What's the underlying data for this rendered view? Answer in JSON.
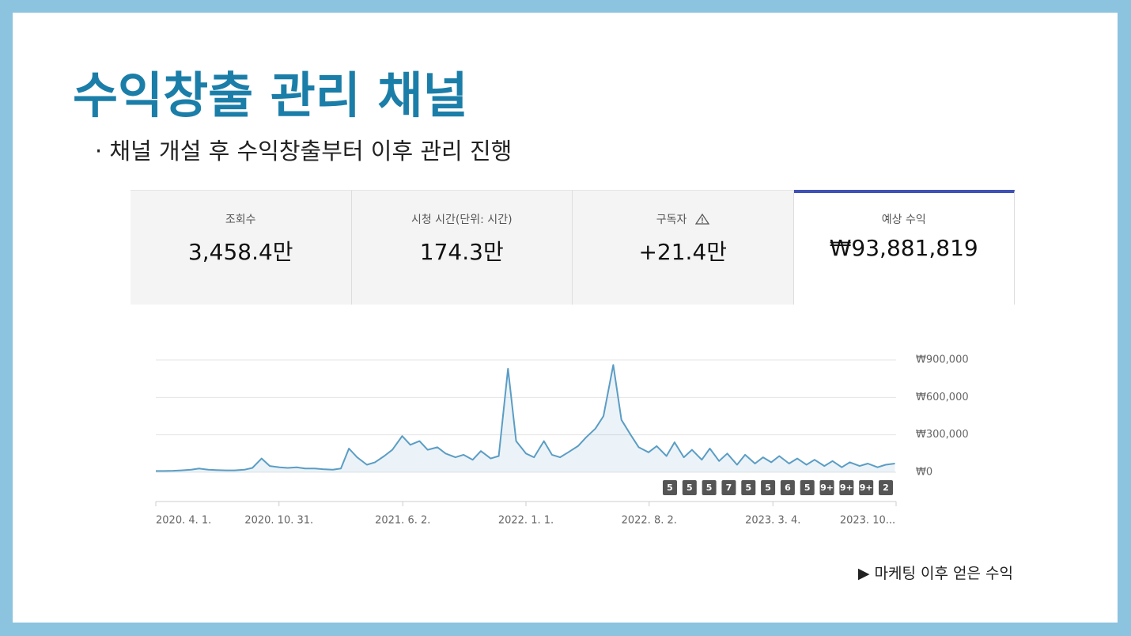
{
  "header": {
    "title": "수익창출 관리 채널",
    "subtitle": "· 채널 개설 후 수익창출부터 이후 관리 진행"
  },
  "cards": [
    {
      "label": "조회수",
      "value": "3,458.4만"
    },
    {
      "label": "시청 시간(단위: 시간)",
      "value": "174.3만"
    },
    {
      "label": "구독자",
      "value": "+21.4만"
    },
    {
      "label": "예상 수익",
      "value": "₩93,881,819"
    }
  ],
  "chart_data": {
    "type": "area",
    "color": "#5b9dc4",
    "x": [
      "2020-04-01",
      "2020-04-15",
      "2020-05-01",
      "2020-05-15",
      "2020-06-01",
      "2020-06-15",
      "2020-07-01",
      "2020-07-15",
      "2020-08-01",
      "2020-08-15",
      "2020-09-01",
      "2020-09-15",
      "2020-10-01",
      "2020-10-15",
      "2020-11-01",
      "2020-11-15",
      "2020-12-01",
      "2020-12-15",
      "2021-01-01",
      "2021-01-15",
      "2021-02-01",
      "2021-02-15",
      "2021-03-01",
      "2021-03-15",
      "2021-04-01",
      "2021-04-15",
      "2021-05-01",
      "2021-05-15",
      "2021-06-01",
      "2021-06-15",
      "2021-07-01",
      "2021-07-15",
      "2021-08-01",
      "2021-08-15",
      "2021-09-01",
      "2021-09-15",
      "2021-10-01",
      "2021-10-15",
      "2021-11-01",
      "2021-11-15",
      "2021-12-01",
      "2021-12-15",
      "2022-01-01",
      "2022-01-15",
      "2022-02-01",
      "2022-02-15",
      "2022-03-01",
      "2022-03-15",
      "2022-04-01",
      "2022-04-15",
      "2022-05-01",
      "2022-05-15",
      "2022-06-01",
      "2022-06-15",
      "2022-07-01",
      "2022-07-15",
      "2022-08-01",
      "2022-08-15",
      "2022-09-01",
      "2022-09-15",
      "2022-10-01",
      "2022-10-15",
      "2022-11-01",
      "2022-11-15",
      "2022-12-01",
      "2022-12-15",
      "2023-01-01",
      "2023-01-15",
      "2023-02-01",
      "2023-02-15",
      "2023-03-01",
      "2023-03-15",
      "2023-04-01",
      "2023-04-15",
      "2023-05-01",
      "2023-05-15",
      "2023-06-01",
      "2023-06-15",
      "2023-07-01",
      "2023-07-15",
      "2023-08-01",
      "2023-08-15",
      "2023-09-01",
      "2023-09-15",
      "2023-10-01"
    ],
    "values": [
      10000,
      10000,
      12000,
      15000,
      20000,
      30000,
      20000,
      18000,
      15000,
      15000,
      20000,
      35000,
      110000,
      50000,
      40000,
      35000,
      40000,
      30000,
      30000,
      25000,
      20000,
      30000,
      190000,
      120000,
      60000,
      80000,
      130000,
      180000,
      290000,
      220000,
      250000,
      180000,
      200000,
      150000,
      120000,
      140000,
      100000,
      170000,
      110000,
      130000,
      830000,
      250000,
      150000,
      120000,
      250000,
      140000,
      120000,
      160000,
      210000,
      280000,
      350000,
      450000,
      860000,
      420000,
      300000,
      200000,
      160000,
      210000,
      130000,
      240000,
      120000,
      180000,
      100000,
      190000,
      90000,
      150000,
      60000,
      140000,
      70000,
      120000,
      80000,
      130000,
      70000,
      110000,
      60000,
      100000,
      50000,
      90000,
      40000,
      80000,
      50000,
      70000,
      40000,
      60000,
      70000
    ],
    "xlim": [
      "2020-04-01",
      "2023-10-03"
    ],
    "xticks": [
      {
        "value": "2020-04-01",
        "label": "2020. 4. 1."
      },
      {
        "value": "2020-10-31",
        "label": "2020. 10. 31."
      },
      {
        "value": "2021-06-02",
        "label": "2021. 6. 2."
      },
      {
        "value": "2022-01-01",
        "label": "2022. 1. 1."
      },
      {
        "value": "2022-08-02",
        "label": "2022. 8. 2."
      },
      {
        "value": "2023-03-04",
        "label": "2023. 3. 4."
      },
      {
        "value": "2023-10-03",
        "label": "2023. 10..."
      }
    ],
    "ylim": [
      0,
      900000
    ],
    "yticks": [
      {
        "value": 0,
        "label": "₩0"
      },
      {
        "value": 300000,
        "label": "₩300,000"
      },
      {
        "value": 600000,
        "label": "₩600,000"
      },
      {
        "value": 900000,
        "label": "₩900,000"
      }
    ],
    "grid": true,
    "annotation_badges": [
      "5",
      "5",
      "5",
      "7",
      "5",
      "5",
      "6",
      "5",
      "9+",
      "9+",
      "9+",
      "2"
    ]
  },
  "caption": "▶ 마케팅 이후 얻은 수익"
}
